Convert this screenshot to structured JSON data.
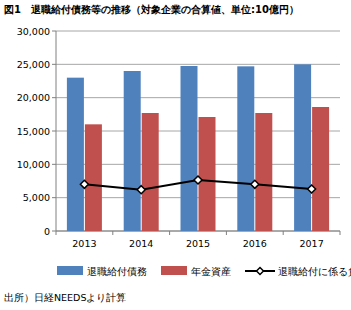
{
  "chart_data": {
    "type": "bar",
    "title": "図1　退職給付債務等の推移（対象企業の合算値、単位:10億円）",
    "source": "出所）日経NEEDSより計算",
    "categories": [
      "2013",
      "2014",
      "2015",
      "2016",
      "2017"
    ],
    "series": [
      {
        "name": "退職給付債務",
        "type": "bar",
        "color": "#4f81bd",
        "values": [
          23000,
          24000,
          24750,
          24700,
          25000
        ]
      },
      {
        "name": "年金資産",
        "type": "bar",
        "color": "#c0504d",
        "values": [
          16000,
          17700,
          17100,
          17700,
          18600
        ]
      },
      {
        "name": "退職給付に係る負債",
        "type": "line",
        "color": "#000000",
        "marker": "diamond",
        "values": [
          7000,
          6200,
          7650,
          7000,
          6300
        ]
      }
    ],
    "ylim": [
      0,
      30000
    ],
    "yticks": [
      0,
      {
        "value": 5000,
        "label": "5,000"
      },
      {
        "value": 10000,
        "label": "10,000"
      },
      {
        "value": 15000,
        "label": "15,000"
      },
      {
        "value": 20000,
        "label": "20,000"
      },
      {
        "value": 25000,
        "label": "25,000"
      },
      {
        "value": 30000,
        "label": "30,000"
      }
    ],
    "grid": true,
    "legend": "bottom"
  }
}
